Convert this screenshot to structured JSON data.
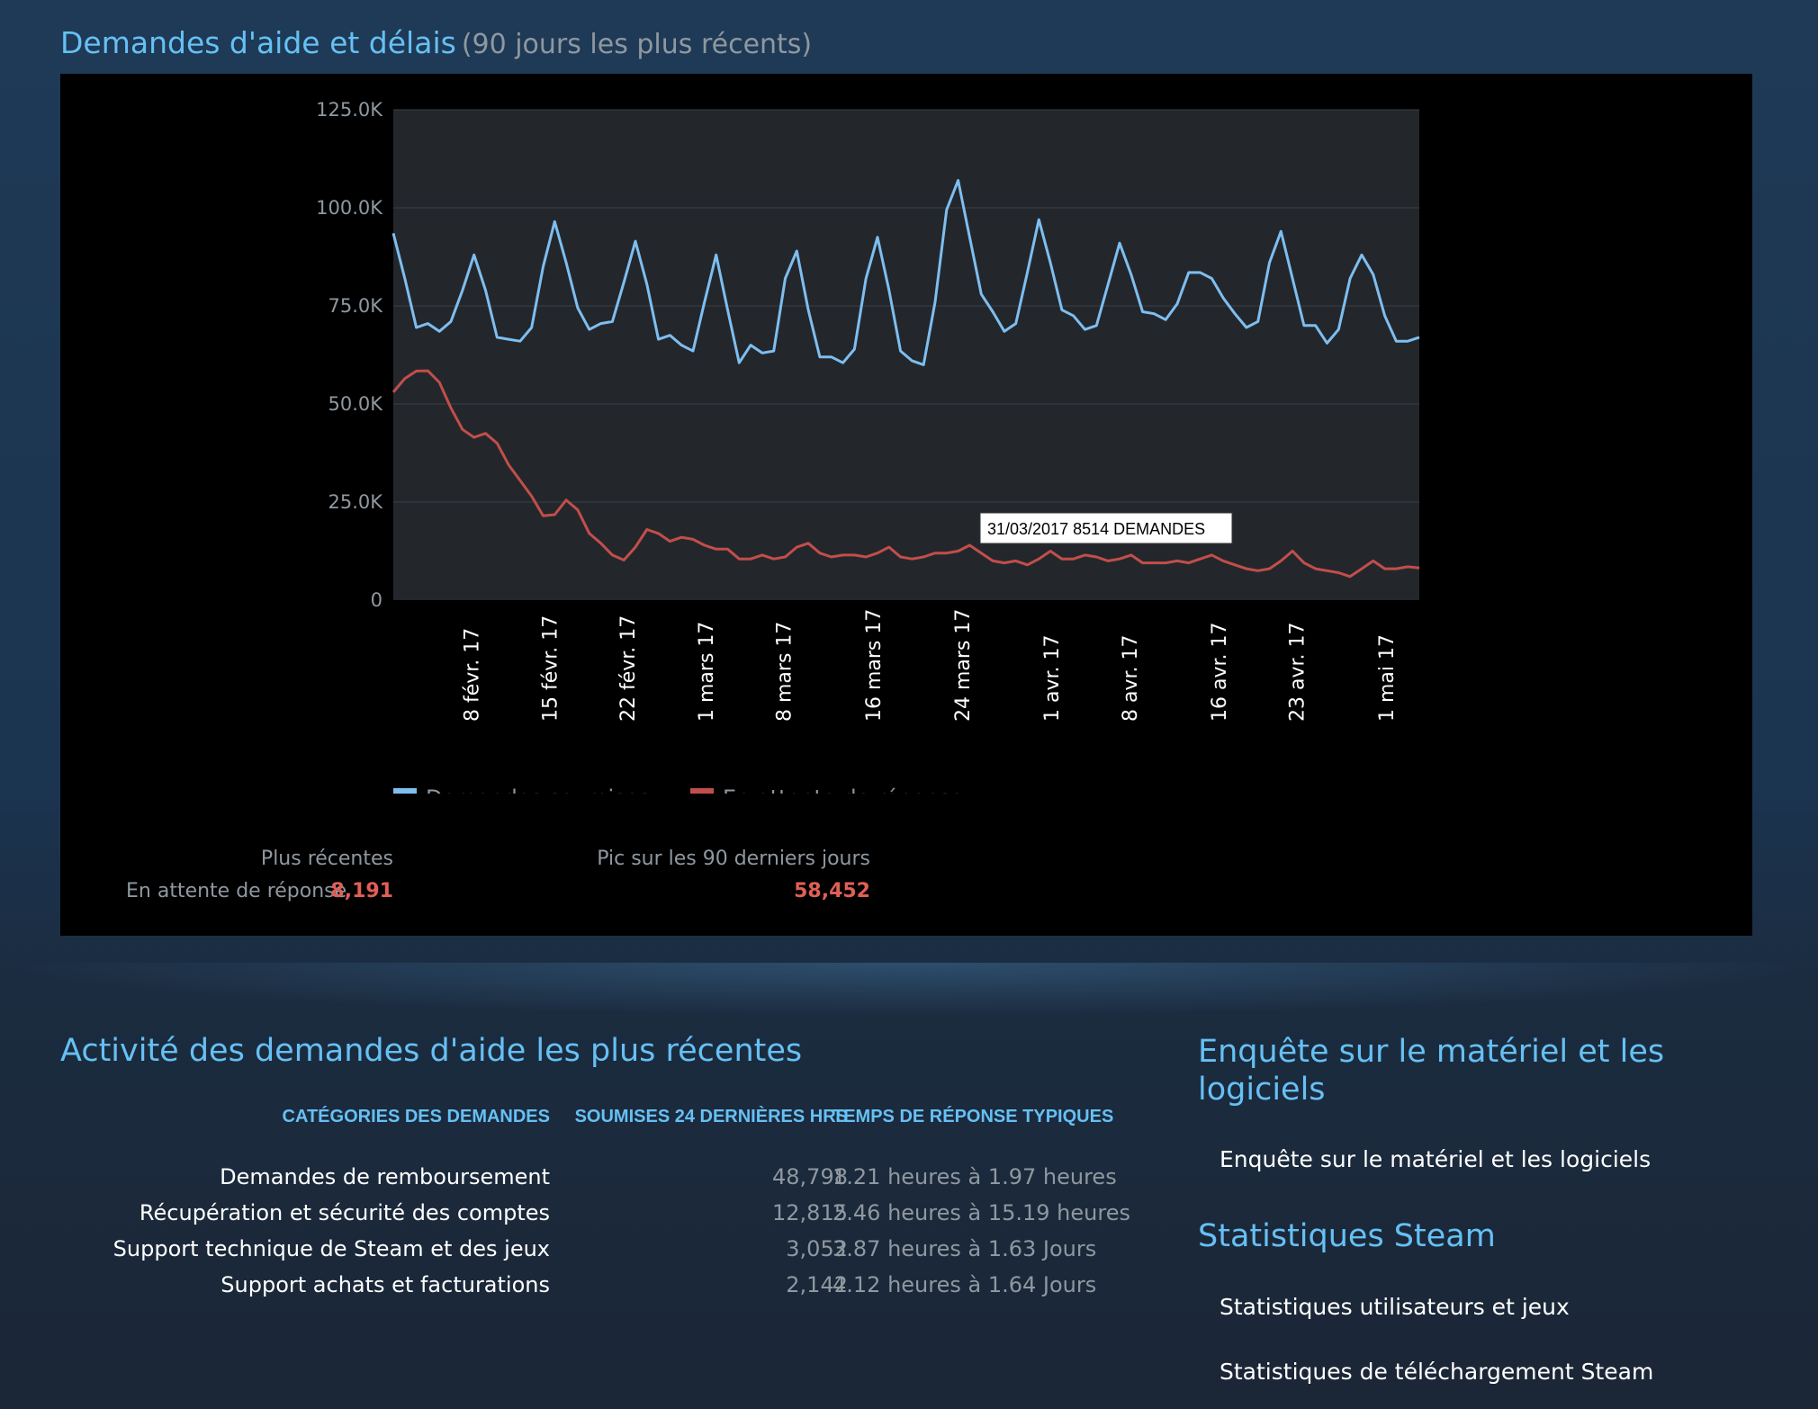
{
  "header": {
    "title": "Demandes d'aide et délais",
    "subtitle": "(90 jours les plus récents)"
  },
  "chart_data": {
    "type": "line",
    "title": "",
    "xlabel": "",
    "ylabel": "",
    "ylim": [
      0,
      125000
    ],
    "yticks": [
      0,
      25000,
      50000,
      75000,
      100000,
      125000
    ],
    "ytick_labels": [
      "0",
      "25.0K",
      "50.0K",
      "75.0K",
      "100.0K",
      "125.0K"
    ],
    "x_start": "2017-02-01",
    "x_end": "2017-05-04",
    "xtick_dates": [
      "2017-02-08",
      "2017-02-15",
      "2017-02-22",
      "2017-03-01",
      "2017-03-08",
      "2017-03-16",
      "2017-03-24",
      "2017-04-01",
      "2017-04-08",
      "2017-04-16",
      "2017-04-23",
      "2017-05-01"
    ],
    "xtick_labels": [
      "8 févr. 17",
      "15 févr. 17",
      "22 févr. 17",
      "1 mars 17",
      "8 mars 17",
      "16 mars 17",
      "24 mars 17",
      "1 avr. 17",
      "8 avr. 17",
      "16 avr. 17",
      "23 avr. 17",
      "1 mai 17"
    ],
    "grid": true,
    "legend_position": "bottom-left",
    "series": [
      {
        "name": "Demandes soumises",
        "color": "#7ebef0",
        "values": [
          93500,
          82000,
          69500,
          70500,
          68500,
          71000,
          79000,
          88000,
          79000,
          67000,
          66500,
          66000,
          69500,
          85000,
          96500,
          86000,
          74500,
          69000,
          70500,
          71000,
          81000,
          91500,
          80500,
          66500,
          67500,
          65000,
          63500,
          76000,
          88000,
          74000,
          60500,
          65000,
          63000,
          63500,
          82000,
          89000,
          74000,
          62000,
          62000,
          60500,
          64000,
          82000,
          92500,
          79000,
          63500,
          61000,
          60000,
          76000,
          99500,
          107000,
          92500,
          78000,
          73500,
          68500,
          70500,
          83500,
          97000,
          86000,
          74000,
          72500,
          69000,
          70000,
          80500,
          91000,
          83000,
          73500,
          73000,
          71500,
          75500,
          83500,
          83500,
          82000,
          77000,
          73000,
          69500,
          71000,
          86000,
          94000,
          82000,
          70000,
          70000,
          65500,
          69000,
          82000,
          88000,
          83000,
          72500,
          66000,
          66000,
          67000
        ]
      },
      {
        "name": "En attente de réponse",
        "color": "#c24e4a",
        "values": [
          53000,
          56500,
          58400,
          58452,
          55500,
          49000,
          43500,
          41500,
          42500,
          40000,
          34500,
          30500,
          26500,
          21500,
          21800,
          25500,
          23000,
          17000,
          14500,
          11500,
          10200,
          13500,
          18000,
          17000,
          15000,
          16000,
          15500,
          14000,
          13000,
          13000,
          10500,
          10500,
          11500,
          10500,
          11000,
          13500,
          14500,
          12000,
          11000,
          11500,
          11500,
          11000,
          12000,
          13500,
          11000,
          10500,
          11000,
          12000,
          12000,
          12500,
          14000,
          12000,
          10000,
          9500,
          10000,
          9000,
          10500,
          12500,
          10500,
          10500,
          11500,
          11000,
          10000,
          10500,
          11500,
          9500,
          9500,
          9500,
          10000,
          9500,
          10500,
          11500,
          10000,
          9000,
          8000,
          7500,
          8000,
          10000,
          12500,
          9500,
          8000,
          7500,
          7000,
          6000,
          8000,
          10000,
          8000,
          8000,
          8500,
          8191
        ]
      }
    ],
    "tooltip": {
      "label": "31/03/2017 8514 DEMANDES"
    }
  },
  "stats": {
    "recent_header": "Plus récentes",
    "peak_header": "Pic sur les 90 derniers jours",
    "row_label": "En attente de réponse",
    "recent_value": "8,191",
    "peak_value": "58,452"
  },
  "activity": {
    "title": "Activité des demandes d'aide les plus récentes",
    "headers": {
      "category": "CATÉGORIES DES DEMANDES",
      "submitted": "SOUMISES 24 DERNIÈRES HRS",
      "response": "TEMPS DE RÉPONSE TYPIQUES"
    },
    "rows": [
      {
        "category": "Demandes de remboursement",
        "submitted": "48,798",
        "response": "1.21 heures à 1.97 heures"
      },
      {
        "category": "Récupération et sécurité des comptes",
        "submitted": "12,815",
        "response": "2.46 heures à 15.19 heures"
      },
      {
        "category": "Support technique de Steam et des jeux",
        "submitted": "3,052",
        "response": "3.87 heures à 1.63 Jours"
      },
      {
        "category": "Support achats et facturations",
        "submitted": "2,142",
        "response": "4.12 heures à 1.64 Jours"
      }
    ]
  },
  "survey": {
    "title_line1": "Enquête sur le matériel et les",
    "title_line2": "logiciels",
    "link": "Enquête sur le matériel et les logiciels"
  },
  "steam_stats": {
    "title": "Statistiques Steam",
    "links": [
      "Statistiques utilisateurs et jeux",
      "Statistiques de téléchargement Steam"
    ]
  }
}
